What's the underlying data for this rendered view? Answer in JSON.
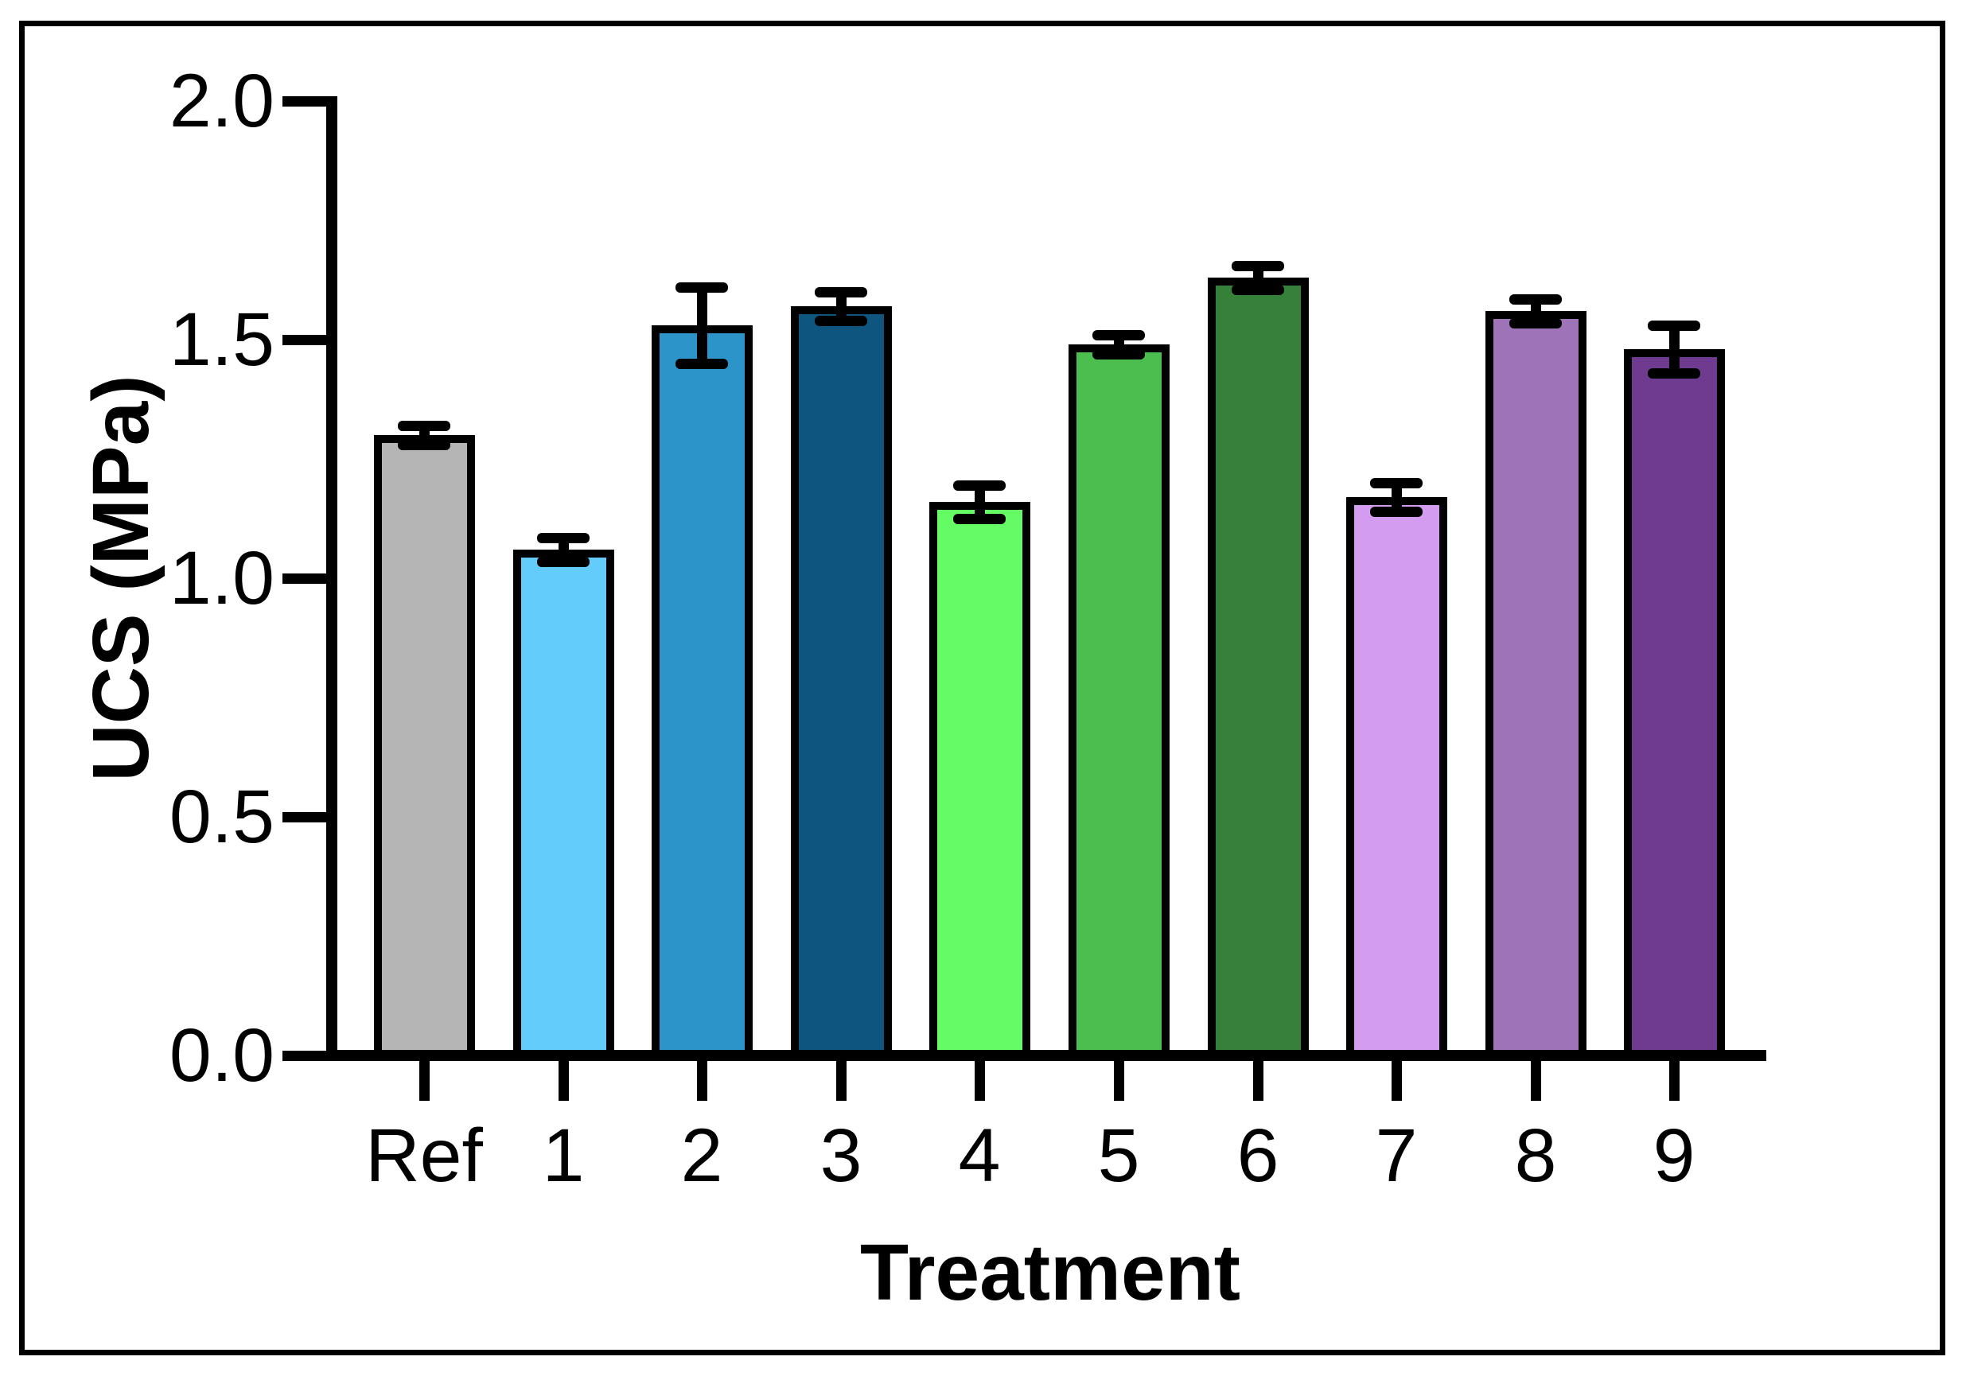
{
  "chart_data": {
    "type": "bar",
    "title": "",
    "xlabel": "Treatment",
    "ylabel": "UCS (MPa)",
    "categories": [
      "Ref",
      "1",
      "2",
      "3",
      "4",
      "5",
      "6",
      "7",
      "8",
      "9"
    ],
    "series": [
      {
        "name": "UCS",
        "values": [
          1.3,
          1.06,
          1.53,
          1.57,
          1.16,
          1.49,
          1.63,
          1.17,
          1.56,
          1.48
        ],
        "errors": [
          0.02,
          0.025,
          0.08,
          0.03,
          0.035,
          0.02,
          0.025,
          0.03,
          0.025,
          0.05
        ]
      }
    ],
    "bar_colors": [
      "#B5B5B5",
      "#63CCFA",
      "#2C94C8",
      "#0E567F",
      "#64FB64",
      "#4CBD4F",
      "#36813A",
      "#D49CF0",
      "#9E73B8",
      "#6E3B90"
    ],
    "bar_outline_color": "#000000",
    "error_bar_color": "#000000",
    "error_bar_style": "caps-both-ends",
    "ylim": [
      0.0,
      2.0
    ],
    "ytick_labels": [
      "0.0",
      "0.5",
      "1.0",
      "1.5",
      "2.0"
    ],
    "grid": false,
    "legend": "none",
    "background_color": "#FFFFFF",
    "axis_color": "#000000"
  }
}
